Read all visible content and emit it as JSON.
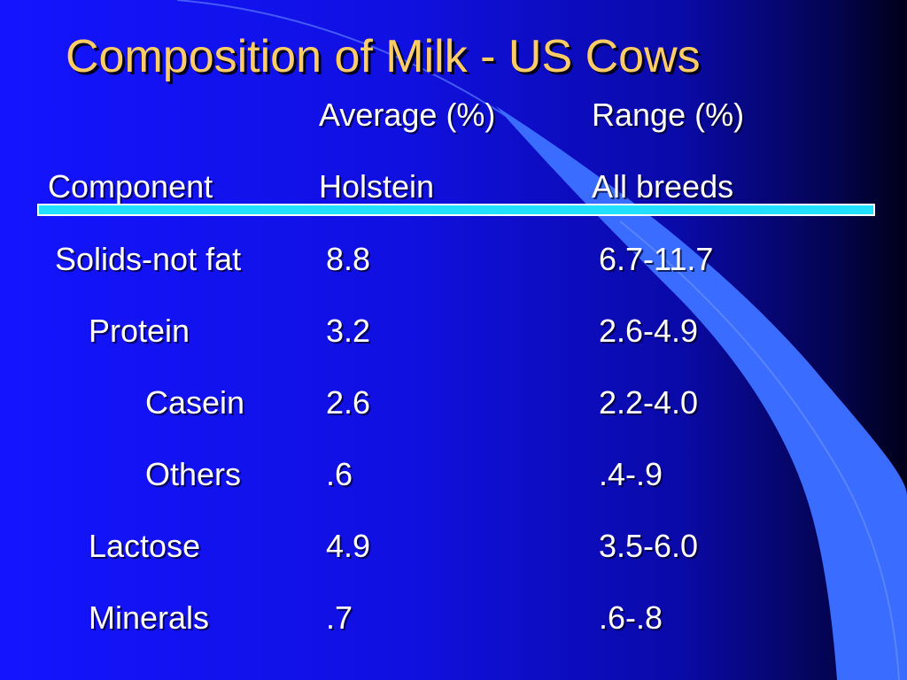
{
  "title": "Composition of Milk - US Cows",
  "columns": {
    "average_label": "Average (%)",
    "range_label": "Range (%)",
    "component_label": "Component",
    "holstein_label": "Holstein",
    "all_breeds_label": "All breeds"
  },
  "rows": [
    {
      "component": "Solids-not fat",
      "average": "8.8",
      "range": "6.7-11.7"
    },
    {
      "component": "Protein",
      "average": "3.2",
      "range": "2.6-4.9"
    },
    {
      "component": "Casein",
      "average": "2.6",
      "range": "2.2-4.0"
    },
    {
      "component": "Others",
      "average": ".6",
      "range": ".4-.9"
    },
    {
      "component": "Lactose",
      "average": "4.9",
      "range": "3.5-6.0"
    },
    {
      "component": "Minerals",
      "average": ".7",
      "range": ".6-.8"
    }
  ],
  "colors": {
    "background": "#1414ff",
    "title": "#ffcc66",
    "text": "#ffffff",
    "rule": "#22e0ff",
    "accent_shape": "#3a6cff"
  }
}
